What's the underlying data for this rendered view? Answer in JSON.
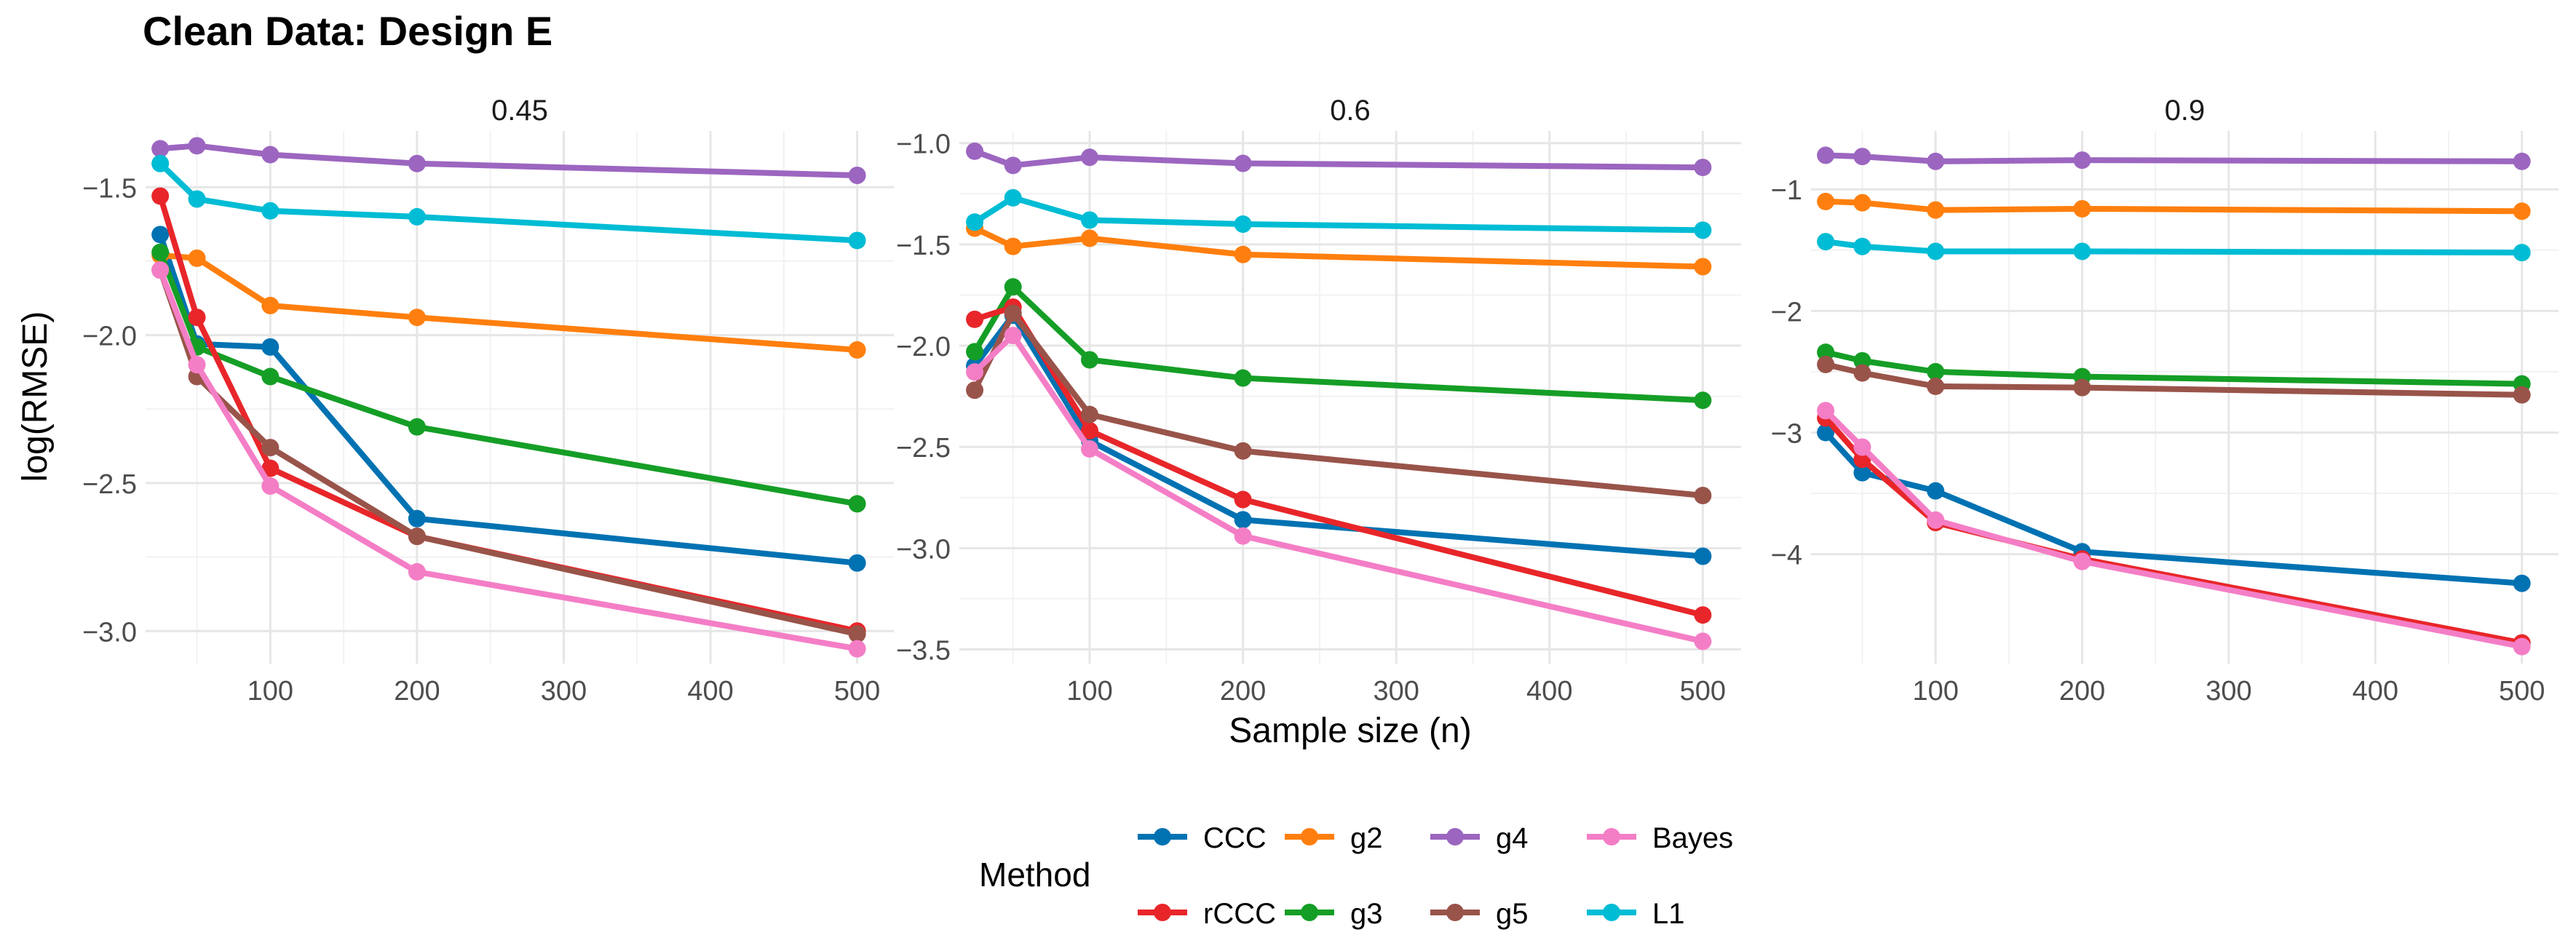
{
  "chart_data": {
    "type": "line",
    "title": "Clean Data: Design E",
    "xlabel": "Sample size (n)",
    "ylabel": "log(RMSE)",
    "legend_title": "Method",
    "legend_position": "bottom",
    "x": [
      25,
      50,
      100,
      200,
      500
    ],
    "x_ticks": [
      100,
      200,
      300,
      400,
      500
    ],
    "colors": {
      "CCC": "#0072B2",
      "rCCC": "#E8262A",
      "g2": "#FF7F0E",
      "g3": "#159E26",
      "g4": "#9C66C0",
      "g5": "#99544A",
      "Bayes": "#F47EC6",
      "L1": "#00BCD4"
    },
    "legend_rows": [
      [
        "CCC",
        "g2",
        "g4",
        "Bayes"
      ],
      [
        "rCCC",
        "g3",
        "g5",
        "L1"
      ]
    ],
    "draw_order": [
      "CCC",
      "g2",
      "g4",
      "L1",
      "g3",
      "rCCC",
      "g5",
      "Bayes"
    ],
    "panels": [
      {
        "label": "0.45",
        "ylim": [
          -3.11,
          -1.31
        ],
        "y_ticks": [
          -3.0,
          -2.5,
          -2.0,
          -1.5
        ],
        "y_tick_labels": [
          "−3.0",
          "−2.5",
          "−2.0",
          "−1.5"
        ],
        "series": [
          {
            "name": "CCC",
            "values": [
              -1.66,
              -2.03,
              -2.04,
              -2.62,
              -2.77
            ]
          },
          {
            "name": "rCCC",
            "values": [
              -1.53,
              -1.94,
              -2.45,
              -2.68,
              -3.0
            ]
          },
          {
            "name": "g2",
            "values": [
              -1.73,
              -1.74,
              -1.9,
              -1.94,
              -2.05
            ]
          },
          {
            "name": "g3",
            "values": [
              -1.72,
              -2.04,
              -2.14,
              -2.31,
              -2.57
            ]
          },
          {
            "name": "g4",
            "values": [
              -1.37,
              -1.36,
              -1.39,
              -1.42,
              -1.46
            ]
          },
          {
            "name": "g5",
            "values": [
              -1.78,
              -2.14,
              -2.38,
              -2.68,
              -3.01
            ]
          },
          {
            "name": "Bayes",
            "values": [
              -1.78,
              -2.1,
              -2.51,
              -2.8,
              -3.06
            ]
          },
          {
            "name": "L1",
            "values": [
              -1.42,
              -1.54,
              -1.58,
              -1.6,
              -1.68
            ]
          }
        ]
      },
      {
        "label": "0.6",
        "ylim": [
          -3.57,
          -0.94
        ],
        "y_ticks": [
          -3.5,
          -3.0,
          -2.5,
          -2.0,
          -1.5,
          -1.0
        ],
        "y_tick_labels": [
          "−3.5",
          "−3.0",
          "−2.5",
          "−2.0",
          "−1.5",
          "−1.0"
        ],
        "series": [
          {
            "name": "CCC",
            "values": [
              -2.1,
              -1.85,
              -2.47,
              -2.86,
              -3.04
            ]
          },
          {
            "name": "rCCC",
            "values": [
              -1.87,
              -1.81,
              -2.42,
              -2.76,
              -3.33
            ]
          },
          {
            "name": "g2",
            "values": [
              -1.42,
              -1.51,
              -1.47,
              -1.55,
              -1.61
            ]
          },
          {
            "name": "g3",
            "values": [
              -2.03,
              -1.71,
              -2.07,
              -2.16,
              -2.27
            ]
          },
          {
            "name": "g4",
            "values": [
              -1.04,
              -1.11,
              -1.07,
              -1.1,
              -1.12
            ]
          },
          {
            "name": "g5",
            "values": [
              -2.22,
              -1.84,
              -2.34,
              -2.52,
              -2.74
            ]
          },
          {
            "name": "Bayes",
            "values": [
              -2.13,
              -1.95,
              -2.51,
              -2.94,
              -3.46
            ]
          },
          {
            "name": "L1",
            "values": [
              -1.39,
              -1.27,
              -1.38,
              -1.4,
              -1.43
            ]
          }
        ]
      },
      {
        "label": "0.9",
        "ylim": [
          -4.9,
          -0.52
        ],
        "y_ticks": [
          -4,
          -3,
          -2,
          -1
        ],
        "y_tick_labels": [
          "−4",
          "−3",
          "−2",
          "−1"
        ],
        "series": [
          {
            "name": "CCC",
            "values": [
              -3.0,
              -3.33,
              -3.48,
              -3.98,
              -4.24
            ]
          },
          {
            "name": "rCCC",
            "values": [
              -2.88,
              -3.22,
              -3.74,
              -4.04,
              -4.73
            ]
          },
          {
            "name": "g2",
            "values": [
              -1.1,
              -1.11,
              -1.17,
              -1.16,
              -1.18
            ]
          },
          {
            "name": "g3",
            "values": [
              -2.34,
              -2.41,
              -2.5,
              -2.54,
              -2.6
            ]
          },
          {
            "name": "g4",
            "values": [
              -0.72,
              -0.73,
              -0.77,
              -0.76,
              -0.77
            ]
          },
          {
            "name": "g5",
            "values": [
              -2.44,
              -2.51,
              -2.62,
              -2.63,
              -2.69
            ]
          },
          {
            "name": "Bayes",
            "values": [
              -2.82,
              -3.12,
              -3.72,
              -4.06,
              -4.76
            ]
          },
          {
            "name": "L1",
            "values": [
              -1.43,
              -1.47,
              -1.51,
              -1.51,
              -1.52
            ]
          }
        ]
      }
    ]
  }
}
